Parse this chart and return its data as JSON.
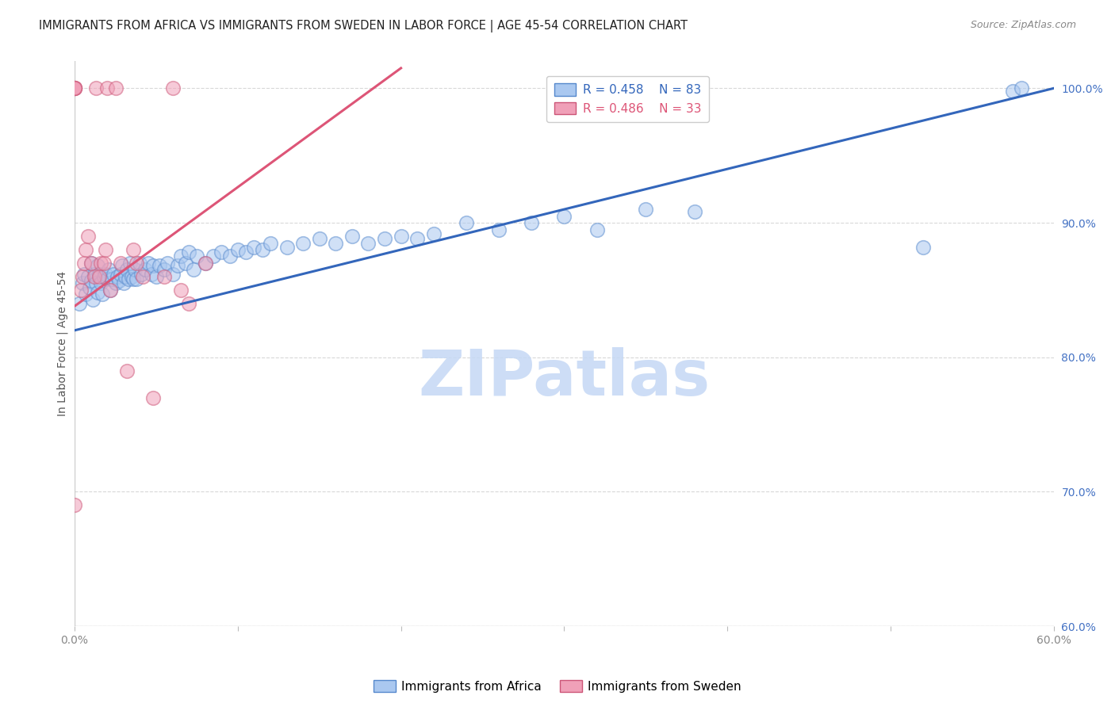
{
  "title": "IMMIGRANTS FROM AFRICA VS IMMIGRANTS FROM SWEDEN IN LABOR FORCE | AGE 45-54 CORRELATION CHART",
  "source": "Source: ZipAtlas.com",
  "ylabel": "In Labor Force | Age 45-54",
  "xlim": [
    0.0,
    0.6
  ],
  "ylim": [
    0.6,
    1.02
  ],
  "xtick_positions": [
    0.0,
    0.1,
    0.2,
    0.3,
    0.4,
    0.5,
    0.6
  ],
  "xtick_labels": [
    "0.0%",
    "",
    "",
    "",
    "",
    "",
    "60.0%"
  ],
  "ytick_positions": [
    0.6,
    0.7,
    0.8,
    0.9,
    1.0
  ],
  "ytick_labels": [
    "60.0%",
    "70.0%",
    "80.0%",
    "90.0%",
    "100.0%"
  ],
  "legend_entries": [
    {
      "label": "Immigrants from Africa",
      "color": "#aac8f0",
      "edge": "#5588cc",
      "R": "0.458",
      "N": "83",
      "R_color": "#4472c4",
      "N_color": "#cc0000"
    },
    {
      "label": "Immigrants from Sweden",
      "color": "#f0a0b8",
      "edge": "#cc5577",
      "R": "0.486",
      "N": "33",
      "R_color": "#cc4466",
      "N_color": "#cc0000"
    }
  ],
  "blue_scatter_x": [
    0.003,
    0.005,
    0.006,
    0.007,
    0.008,
    0.009,
    0.01,
    0.01,
    0.011,
    0.012,
    0.013,
    0.014,
    0.014,
    0.015,
    0.016,
    0.017,
    0.018,
    0.019,
    0.02,
    0.021,
    0.022,
    0.023,
    0.024,
    0.025,
    0.026,
    0.027,
    0.028,
    0.029,
    0.03,
    0.031,
    0.032,
    0.033,
    0.034,
    0.035,
    0.036,
    0.037,
    0.038,
    0.04,
    0.041,
    0.043,
    0.045,
    0.047,
    0.048,
    0.05,
    0.052,
    0.055,
    0.057,
    0.06,
    0.063,
    0.065,
    0.068,
    0.07,
    0.073,
    0.075,
    0.08,
    0.085,
    0.09,
    0.095,
    0.1,
    0.105,
    0.11,
    0.115,
    0.12,
    0.13,
    0.14,
    0.15,
    0.16,
    0.17,
    0.18,
    0.19,
    0.2,
    0.21,
    0.22,
    0.24,
    0.26,
    0.28,
    0.3,
    0.32,
    0.35,
    0.38,
    0.52,
    0.575,
    0.58
  ],
  "blue_scatter_y": [
    0.84,
    0.855,
    0.862,
    0.847,
    0.86,
    0.852,
    0.857,
    0.87,
    0.843,
    0.862,
    0.855,
    0.848,
    0.868,
    0.862,
    0.855,
    0.847,
    0.86,
    0.862,
    0.858,
    0.865,
    0.85,
    0.858,
    0.862,
    0.855,
    0.86,
    0.857,
    0.862,
    0.868,
    0.855,
    0.86,
    0.865,
    0.858,
    0.87,
    0.86,
    0.858,
    0.865,
    0.858,
    0.87,
    0.862,
    0.865,
    0.87,
    0.862,
    0.868,
    0.86,
    0.868,
    0.865,
    0.87,
    0.862,
    0.868,
    0.875,
    0.87,
    0.878,
    0.865,
    0.875,
    0.87,
    0.875,
    0.878,
    0.875,
    0.88,
    0.878,
    0.882,
    0.88,
    0.885,
    0.882,
    0.885,
    0.888,
    0.885,
    0.89,
    0.885,
    0.888,
    0.89,
    0.888,
    0.892,
    0.9,
    0.895,
    0.9,
    0.905,
    0.895,
    0.91,
    0.908,
    0.882,
    0.998,
    1.0
  ],
  "pink_scatter_x": [
    0.0,
    0.0,
    0.0,
    0.0,
    0.0,
    0.0,
    0.0,
    0.004,
    0.005,
    0.006,
    0.007,
    0.008,
    0.01,
    0.012,
    0.013,
    0.015,
    0.016,
    0.018,
    0.019,
    0.02,
    0.022,
    0.025,
    0.028,
    0.032,
    0.036,
    0.038,
    0.042,
    0.048,
    0.055,
    0.06,
    0.065,
    0.07,
    0.08
  ],
  "pink_scatter_y": [
    1.0,
    1.0,
    1.0,
    1.0,
    1.0,
    1.0,
    0.69,
    0.85,
    0.86,
    0.87,
    0.88,
    0.89,
    0.87,
    0.86,
    1.0,
    0.86,
    0.87,
    0.87,
    0.88,
    1.0,
    0.85,
    1.0,
    0.87,
    0.79,
    0.88,
    0.87,
    0.86,
    0.77,
    0.86,
    1.0,
    0.85,
    0.84,
    0.87
  ],
  "blue_line_x": [
    0.0,
    0.6
  ],
  "blue_line_y": [
    0.82,
    1.0
  ],
  "pink_line_x": [
    0.0,
    0.2
  ],
  "pink_line_y": [
    0.838,
    1.015
  ],
  "watermark_text": "ZIPatlas",
  "watermark_color": "#c5d8f5",
  "bg_color": "#ffffff",
  "grid_color": "#d8d8d8",
  "blue_dot_face": "#aac8f0",
  "blue_dot_edge": "#6090d0",
  "pink_dot_face": "#f0a0b8",
  "pink_dot_edge": "#d06080",
  "blue_line_color": "#3366bb",
  "pink_line_color": "#dd5577",
  "title_fontsize": 10.5,
  "source_fontsize": 9,
  "axis_fontsize": 10,
  "right_tick_color": "#4472c4",
  "ylabel_color": "#555555",
  "xtick_color": "#888888"
}
